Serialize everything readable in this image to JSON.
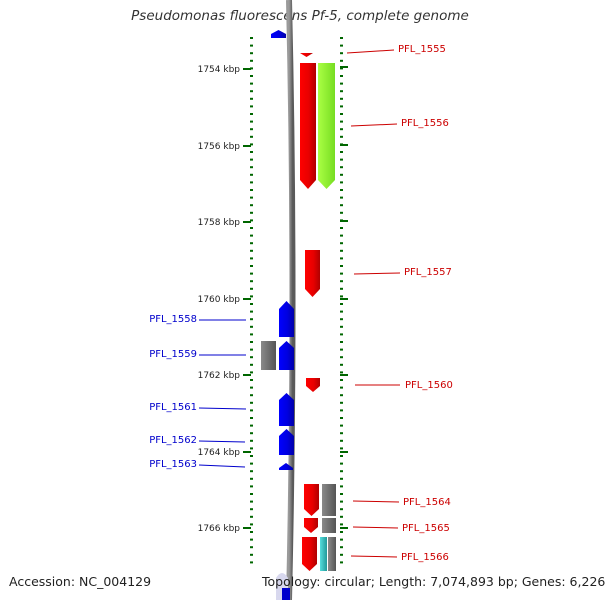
{
  "title": "Pseudomonas fluorescens Pf-5, complete genome",
  "footer": {
    "accession": "Accession: NC_004129",
    "summary": "Topology: circular; Length: 7,074,893 bp; Genes: 6,226"
  },
  "axis": {
    "unit": "kbp",
    "ticks": [
      "1754 kbp",
      "1756 kbp",
      "1758 kbp",
      "1760 kbp",
      "1762 kbp",
      "1764 kbp",
      "1766 kbp"
    ]
  },
  "colors": {
    "forward_gene": "#ff0000",
    "reverse_gene": "#0000ff",
    "grey_feature": "#707070",
    "green_feature": "#99ff33",
    "cyan_feature": "#33cccc",
    "forward_label": "#cc0000",
    "reverse_label": "#0000cc",
    "tick_green": "#006600"
  },
  "forward_genes": [
    {
      "label": "PFL_1555"
    },
    {
      "label": "PFL_1556"
    },
    {
      "label": "PFL_1557"
    },
    {
      "label": "PFL_1560"
    },
    {
      "label": "PFL_1564"
    },
    {
      "label": "PFL_1565"
    },
    {
      "label": "PFL_1566"
    }
  ],
  "reverse_genes": [
    {
      "label": "PFL_1558"
    },
    {
      "label": "PFL_1559"
    },
    {
      "label": "PFL_1561"
    },
    {
      "label": "PFL_1562"
    },
    {
      "label": "PFL_1563"
    }
  ]
}
